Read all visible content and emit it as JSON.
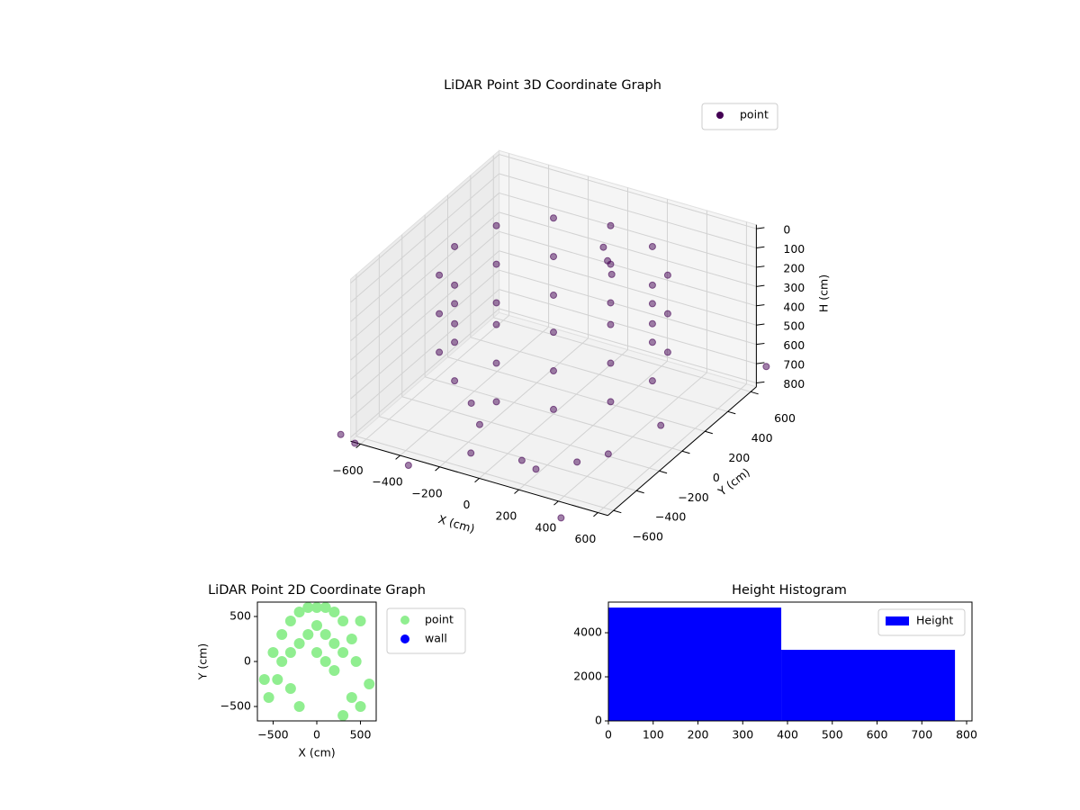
{
  "chart_data": [
    {
      "type": "scatter3d",
      "title": "LiDAR Point 3D Coordinate Graph",
      "xlabel": "X (cm)",
      "ylabel": "Y (cm)",
      "zlabel": "H (cm)",
      "xlim": [
        -650,
        650
      ],
      "ylim": [
        -650,
        650
      ],
      "zlim": [
        820,
        -20
      ],
      "xticks": [
        {
          "value": -600,
          "label": "−600"
        },
        {
          "value": -400,
          "label": "−400"
        },
        {
          "value": -200,
          "label": "−200"
        },
        0,
        200,
        400,
        600
      ],
      "yticks": [
        {
          "value": -600,
          "label": "−600"
        },
        {
          "value": -400,
          "label": "−400"
        },
        {
          "value": -200,
          "label": "−200"
        },
        0,
        200,
        400,
        600
      ],
      "zticks": [
        0,
        100,
        200,
        300,
        400,
        500,
        600,
        700,
        800
      ],
      "grid": true,
      "legend": "upper right",
      "series": [
        {
          "name": "point",
          "color": "#440154",
          "x": [
            500,
            433,
            250,
            0,
            -250,
            -433,
            -500,
            -433,
            -250,
            0,
            250,
            433,
            500,
            433,
            250,
            0,
            -250,
            -433,
            -500,
            -433,
            -250,
            0,
            250,
            433,
            500,
            433,
            250,
            0,
            -250,
            -433,
            -500,
            -433,
            -250,
            0,
            250,
            433,
            100,
            150,
            50,
            -300,
            -200,
            100,
            200,
            -100,
            350,
            450,
            -700,
            -600,
            500,
            700,
            -300,
            600
          ],
          "y": [
            0,
            250,
            433,
            500,
            433,
            250,
            0,
            -250,
            -433,
            -500,
            -433,
            -250,
            0,
            250,
            433,
            500,
            433,
            250,
            0,
            -250,
            -433,
            -500,
            -433,
            -250,
            0,
            250,
            433,
            500,
            433,
            250,
            0,
            -250,
            -433,
            -500,
            -433,
            -250,
            300,
            250,
            350,
            -200,
            -300,
            -450,
            -500,
            -550,
            -400,
            -300,
            -650,
            -700,
            -800,
            650,
            -750,
            -100
          ],
          "z": [
            100,
            100,
            100,
            100,
            100,
            100,
            100,
            100,
            100,
            100,
            100,
            100,
            300,
            300,
            300,
            300,
            300,
            300,
            300,
            300,
            300,
            300,
            300,
            300,
            500,
            500,
            500,
            500,
            500,
            500,
            500,
            500,
            500,
            500,
            500,
            500,
            150,
            180,
            120,
            750,
            780,
            800,
            790,
            770,
            760,
            740,
            800,
            790,
            800,
            700,
            790,
            650
          ]
        }
      ]
    },
    {
      "type": "scatter",
      "title": "LiDAR Point 2D Coordinate Graph",
      "xlabel": "X (cm)",
      "ylabel": "Y (cm)",
      "xlim": [
        -680,
        680
      ],
      "ylim": [
        -660,
        660
      ],
      "xticks": [
        {
          "value": -500,
          "label": "−500"
        },
        0,
        500
      ],
      "yticks": [
        {
          "value": -500,
          "label": "−500"
        },
        0,
        500
      ],
      "legend": "outside right",
      "series": [
        {
          "name": "point",
          "color": "#90ee90",
          "x": [
            0,
            100,
            200,
            300,
            -100,
            -200,
            -300,
            -400,
            0,
            100,
            200,
            -100,
            -200,
            -300,
            -400,
            -450,
            0,
            100,
            200,
            300,
            400,
            500,
            -500,
            -600,
            -300,
            -200,
            300,
            400,
            500,
            600,
            450,
            -550
          ],
          "y": [
            600,
            600,
            550,
            450,
            600,
            550,
            450,
            300,
            400,
            300,
            200,
            300,
            200,
            100,
            0,
            -200,
            100,
            0,
            -100,
            100,
            250,
            450,
            100,
            -200,
            -300,
            -500,
            -600,
            -400,
            -500,
            -250,
            0,
            -400
          ]
        },
        {
          "name": "wall",
          "color": "#0000ff",
          "x": [],
          "y": []
        }
      ]
    },
    {
      "type": "histogram",
      "title": "Height Histogram",
      "xlim": [
        0,
        812
      ],
      "ylim": [
        0,
        5390
      ],
      "xticks": [
        0,
        100,
        200,
        300,
        400,
        500,
        600,
        700,
        800
      ],
      "yticks": [
        0,
        2000,
        4000
      ],
      "legend": "upper right",
      "series": [
        {
          "name": "Height",
          "color": "#0000ff",
          "bins": [
            0,
            386,
            774
          ],
          "counts": [
            5140,
            3225
          ]
        }
      ]
    }
  ]
}
